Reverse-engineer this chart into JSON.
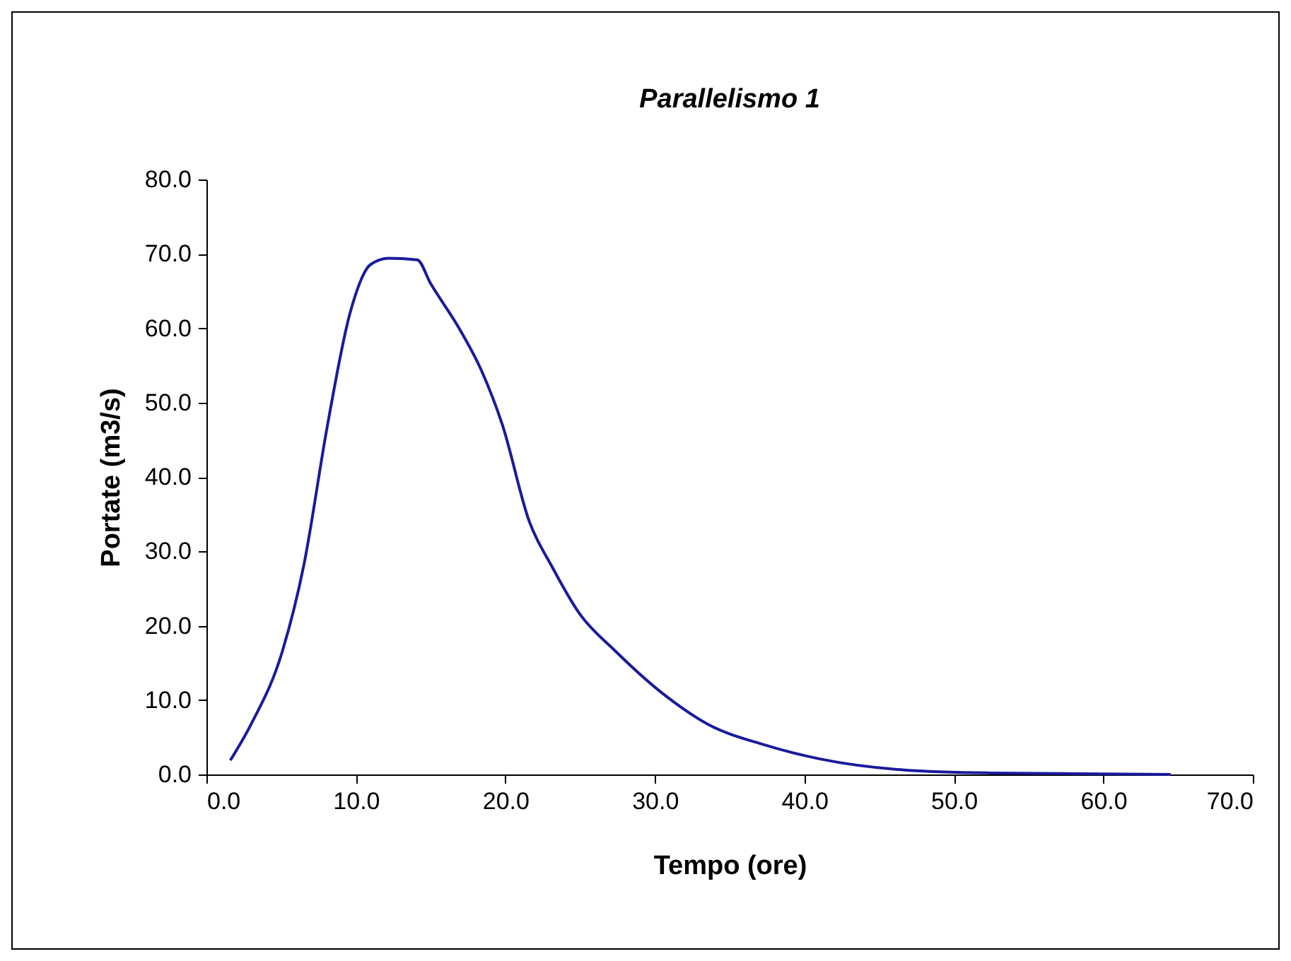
{
  "chart_data": {
    "type": "line",
    "title": "Parallelismo  1",
    "xlabel": "Tempo (ore)",
    "ylabel": "Portate (m3/s)",
    "x": [
      1.6,
      3.0,
      5.1,
      6.5,
      8.1,
      9.6,
      11.0,
      12.2,
      14.1,
      15.0,
      16.9,
      18.4,
      19.8,
      21.6,
      23.1,
      25.0,
      27.3,
      30.7,
      33.5,
      37.3,
      41.0,
      46.7,
      52.4,
      58.0,
      64.5
    ],
    "series": [
      {
        "color": "#1a1a9c",
        "values": [
          1.9,
          6.8,
          16.7,
          28.0,
          47.0,
          62.0,
          68.6,
          69.4,
          69.2,
          66.0,
          60.0,
          54.3,
          47.0,
          34.0,
          28.0,
          21.5,
          16.7,
          10.6,
          6.8,
          4.0,
          2.1,
          0.6,
          0.2,
          0.1,
          0.0
        ]
      }
    ],
    "xlim": [
      0,
      70
    ],
    "xticks": [
      {
        "value": 0,
        "label": "0.0"
      },
      {
        "value": 10,
        "label": "10.0"
      },
      {
        "value": 20,
        "label": "20.0"
      },
      {
        "value": 30,
        "label": "30.0"
      },
      {
        "value": 40,
        "label": "40.0"
      },
      {
        "value": 50,
        "label": "50.0"
      },
      {
        "value": 60,
        "label": "60.0"
      },
      {
        "value": 70,
        "label": "70.0"
      }
    ],
    "ylim": [
      0,
      80
    ],
    "yticks": [
      {
        "value": 0,
        "label": "0.0"
      },
      {
        "value": 10,
        "label": "10.0"
      },
      {
        "value": 20,
        "label": "20.0"
      },
      {
        "value": 30,
        "label": "30.0"
      },
      {
        "value": 40,
        "label": "40.0"
      },
      {
        "value": 50,
        "label": "50.0"
      },
      {
        "value": 60,
        "label": "60.0"
      },
      {
        "value": 70,
        "label": "70.0"
      },
      {
        "value": 80,
        "label": "80.0"
      }
    ],
    "line_style": "solid"
  }
}
